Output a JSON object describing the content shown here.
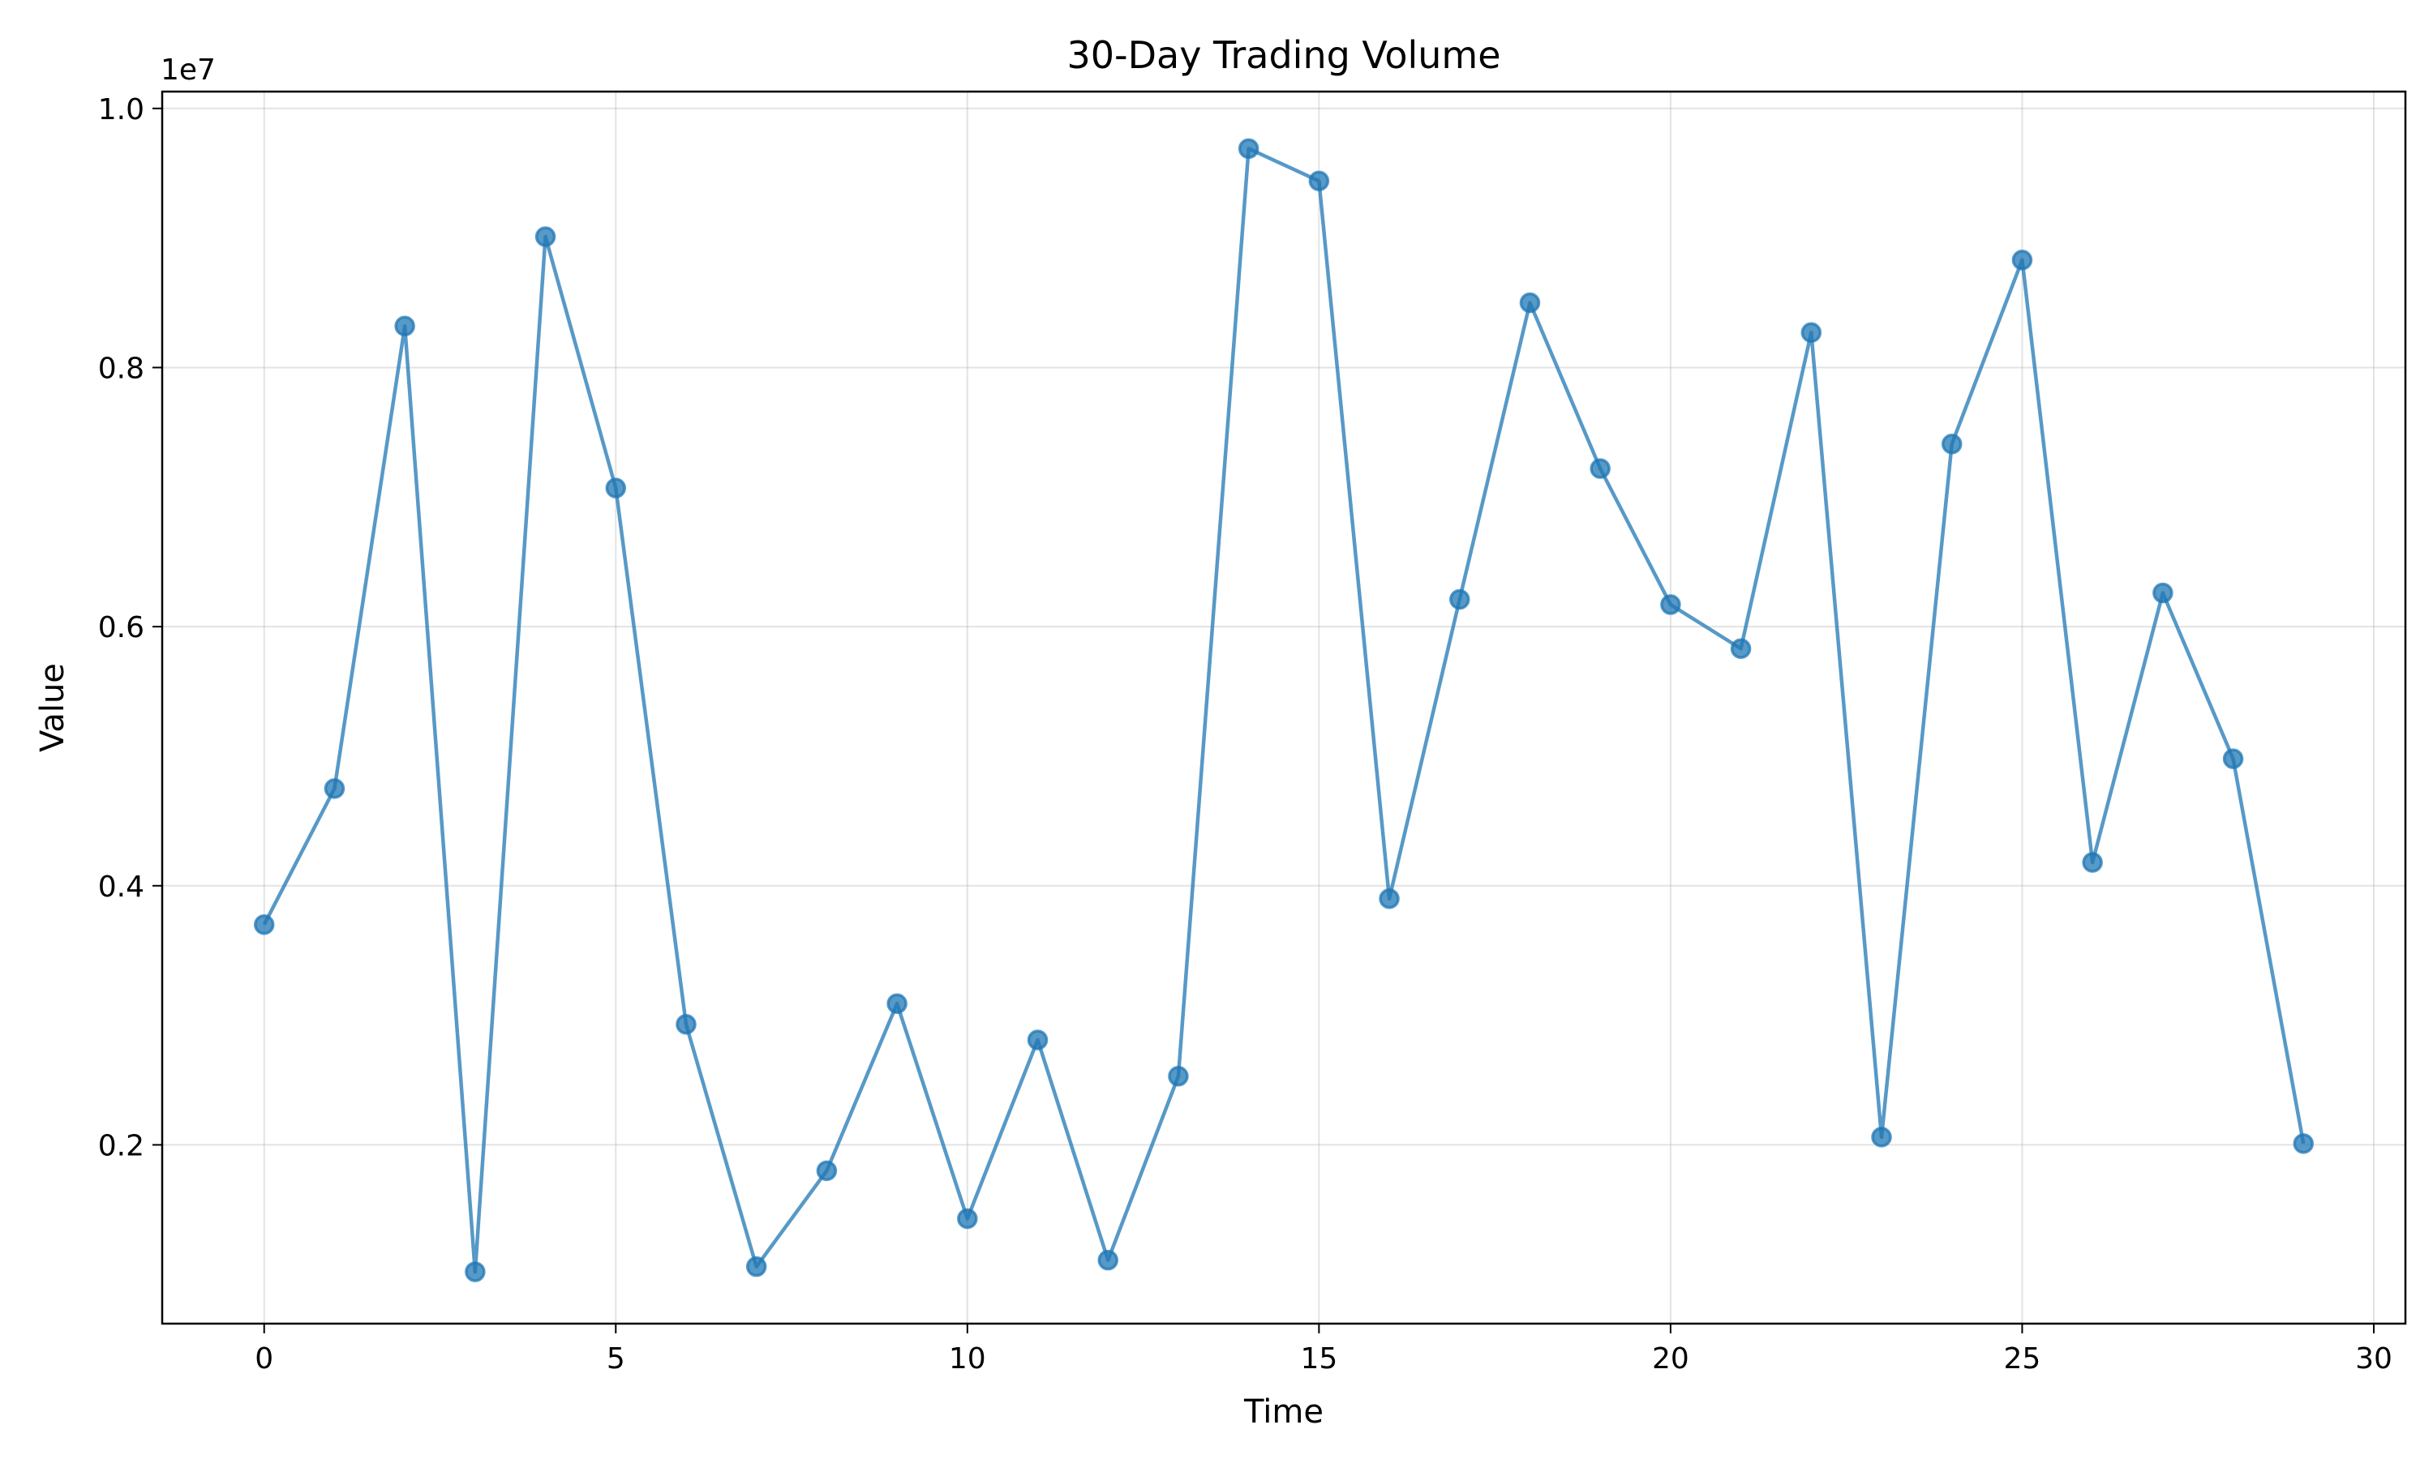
{
  "chart_data": {
    "type": "line",
    "title": "30-Day Trading Volume",
    "xlabel": "Time",
    "ylabel": "Value",
    "y_offset_text": "1e7",
    "xlim": [
      -1.45,
      30.45
    ],
    "ylim": [
      620000,
      10130000
    ],
    "xticks": [
      0,
      5,
      10,
      15,
      20,
      25,
      30
    ],
    "xtick_labels": [
      "0",
      "5",
      "10",
      "15",
      "20",
      "25",
      "30"
    ],
    "yticks": [
      2000000,
      4000000,
      6000000,
      8000000,
      10000000
    ],
    "ytick_labels": [
      "0.2",
      "0.4",
      "0.6",
      "0.8",
      "1.0"
    ],
    "grid": true,
    "color": "#1f77b4",
    "series": [
      {
        "x": [
          0,
          1,
          2,
          3,
          4,
          5,
          6,
          7,
          8,
          9,
          10,
          11,
          12,
          13,
          14,
          15,
          16,
          17,
          18,
          19,
          20,
          21,
          22,
          23,
          24,
          25,
          26,
          27,
          28,
          29
        ],
        "values": [
          3700000,
          4750000,
          8320000,
          1020000,
          9010000,
          7070000,
          2930000,
          1060000,
          1800000,
          3090000,
          1430000,
          2810000,
          1110000,
          2530000,
          9690000,
          9440000,
          3900000,
          6210000,
          8500000,
          7220000,
          6170000,
          5830000,
          8270000,
          2060000,
          7410000,
          8830000,
          4180000,
          6260000,
          4980000,
          2010000
        ]
      }
    ]
  }
}
